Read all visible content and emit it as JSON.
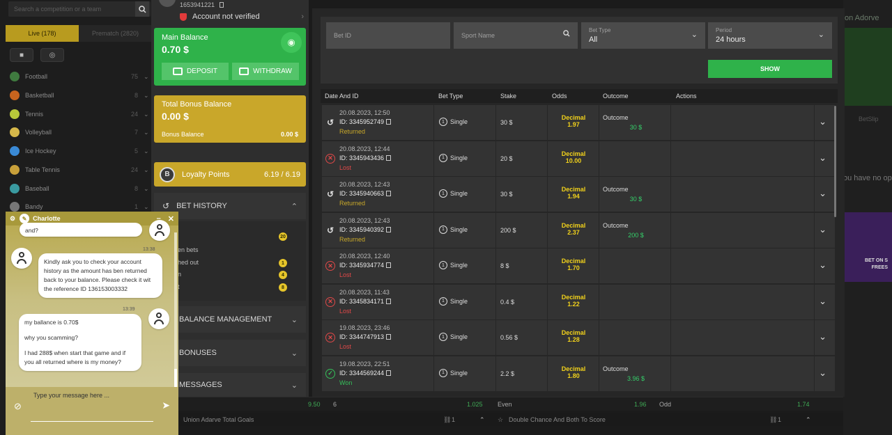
{
  "sidebar": {
    "search_placeholder": "Search a competition or a team",
    "tabs": [
      {
        "label": "Live (178)"
      },
      {
        "label": "Prematch (2820)"
      }
    ],
    "sports": [
      {
        "name": "Football",
        "count": "75",
        "color": "#3f7a3f"
      },
      {
        "name": "Basketball",
        "count": "8",
        "color": "#c8641e"
      },
      {
        "name": "Tennis",
        "count": "24",
        "color": "#b8c83a"
      },
      {
        "name": "Volleyball",
        "count": "7",
        "color": "#d6b84a"
      },
      {
        "name": "Ice Hockey",
        "count": "5",
        "color": "#3a8ad6"
      },
      {
        "name": "Table Tennis",
        "count": "24",
        "color": "#c8a03a"
      },
      {
        "name": "Baseball",
        "count": "8",
        "color": "#3a9aa0"
      },
      {
        "name": "Bandy",
        "count": "1",
        "color": "#777777"
      }
    ]
  },
  "account": {
    "user_id": "1653941221",
    "verify_label": "Account not verified",
    "main_balance_label": "Main Balance",
    "main_balance": "0.70 $",
    "deposit_label": "DEPOSIT",
    "withdraw_label": "WITHDRAW",
    "bonus_label": "Total Bonus Balance",
    "bonus_value": "0.00 $",
    "bonus_sub_label": "Bonus Balance",
    "bonus_sub_value": "0.00 $",
    "loyalty_label": "Loyalty Points",
    "loyalty_value": "6.19 / 6.19",
    "sections": {
      "bet_history": "BET HISTORY",
      "balance_management": "BALANCE MANAGEMENT",
      "bonuses": "BONUSES",
      "messages": "MESSAGES"
    },
    "history_items": [
      {
        "label": "",
        "badge": "20"
      },
      {
        "label": "en bets",
        "badge": ""
      },
      {
        "label": "hed out",
        "badge": "1"
      },
      {
        "label": "n",
        "badge": "4"
      },
      {
        "label": "t",
        "badge": "8"
      }
    ]
  },
  "filters": {
    "bet_id_placeholder": "Bet ID",
    "sport_placeholder": "Sport Name",
    "bet_type_label": "Bet Type",
    "bet_type_value": "All",
    "period_label": "Period",
    "period_value": "24 hours",
    "show_label": "SHOW"
  },
  "table": {
    "headers": [
      "Date And ID",
      "Bet Type",
      "Stake",
      "Odds",
      "Outcome",
      "Actions"
    ],
    "rows": [
      {
        "date": "20.08.2023, 12:50",
        "id": "ID: 3345952749",
        "status": "Returned",
        "type": "Single",
        "stake": "30 $",
        "odds_label": "Decimal",
        "odds": "1.97",
        "outcome_label": "Outcome",
        "outcome": "30 $"
      },
      {
        "date": "20.08.2023, 12:44",
        "id": "ID: 3345943436",
        "status": "Lost",
        "type": "Single",
        "stake": "20 $",
        "odds_label": "Decimal",
        "odds": "10.00",
        "outcome_label": "",
        "outcome": ""
      },
      {
        "date": "20.08.2023, 12:43",
        "id": "ID: 3345940663",
        "status": "Returned",
        "type": "Single",
        "stake": "30 $",
        "odds_label": "Decimal",
        "odds": "1.94",
        "outcome_label": "Outcome",
        "outcome": "30 $"
      },
      {
        "date": "20.08.2023, 12:43",
        "id": "ID: 3345940392",
        "status": "Returned",
        "type": "Single",
        "stake": "200 $",
        "odds_label": "Decimal",
        "odds": "2.37",
        "outcome_label": "Outcome",
        "outcome": "200 $"
      },
      {
        "date": "20.08.2023, 12:40",
        "id": "ID: 3345934774",
        "status": "Lost",
        "type": "Single",
        "stake": "8 $",
        "odds_label": "Decimal",
        "odds": "1.70",
        "outcome_label": "",
        "outcome": ""
      },
      {
        "date": "20.08.2023, 11:43",
        "id": "ID: 3345834171",
        "status": "Lost",
        "type": "Single",
        "stake": "0.4 $",
        "odds_label": "Decimal",
        "odds": "1.22",
        "outcome_label": "",
        "outcome": ""
      },
      {
        "date": "19.08.2023, 23:46",
        "id": "ID: 3344747913",
        "status": "Lost",
        "type": "Single",
        "stake": "0.56 $",
        "odds_label": "Decimal",
        "odds": "1.28",
        "outcome_label": "",
        "outcome": ""
      },
      {
        "date": "19.08.2023, 22:51",
        "id": "ID: 3344569244",
        "status": "Won",
        "type": "Single",
        "stake": "2.2 $",
        "odds_label": "Decimal",
        "odds": "1.80",
        "outcome_label": "Outcome",
        "outcome": "3.96 $"
      }
    ]
  },
  "status_colors": {
    "Returned": "#c8a82a",
    "Lost": "#e04848",
    "Won": "#35c05a"
  },
  "background": {
    "team_title": "on Adorve",
    "betslip": "BetSlip",
    "no_options": "ou have no op",
    "promo_line1": "BET ON S",
    "promo_line2": "FREES",
    "odds_strip": [
      {
        "text": "9.50",
        "color": "#3faa55"
      },
      {
        "text": "6",
        "color": "#aaaaaa"
      },
      {
        "text": "1.025",
        "color": "#3faa55"
      },
      {
        "text": "Even",
        "color": "#aaaaaa"
      },
      {
        "text": "1.96",
        "color": "#3faa55"
      },
      {
        "text": "Odd",
        "color": "#aaaaaa"
      },
      {
        "text": "1.74",
        "color": "#3faa55"
      }
    ],
    "market_left": "Union Adarve Total Goals",
    "market_left_count": "1",
    "market_right": "Double Chance And Both To Score",
    "market_right_count": "1"
  },
  "chat": {
    "agent_name": "Charlotte",
    "partial_message": "and?",
    "messages": [
      {
        "time": "13:38",
        "text": "Kindly ask you to check your account history as the amount has ben returned back to your balance. Please check it wit the reference ID 136153003332"
      },
      {
        "time": "13:39",
        "text_1": "my ballance is 0.70$",
        "text_2": "why you scamming?",
        "text_3": "I had 288$ when start that game and if you all returned where is my money?"
      }
    ],
    "input_placeholder": "Type your message here ..."
  }
}
